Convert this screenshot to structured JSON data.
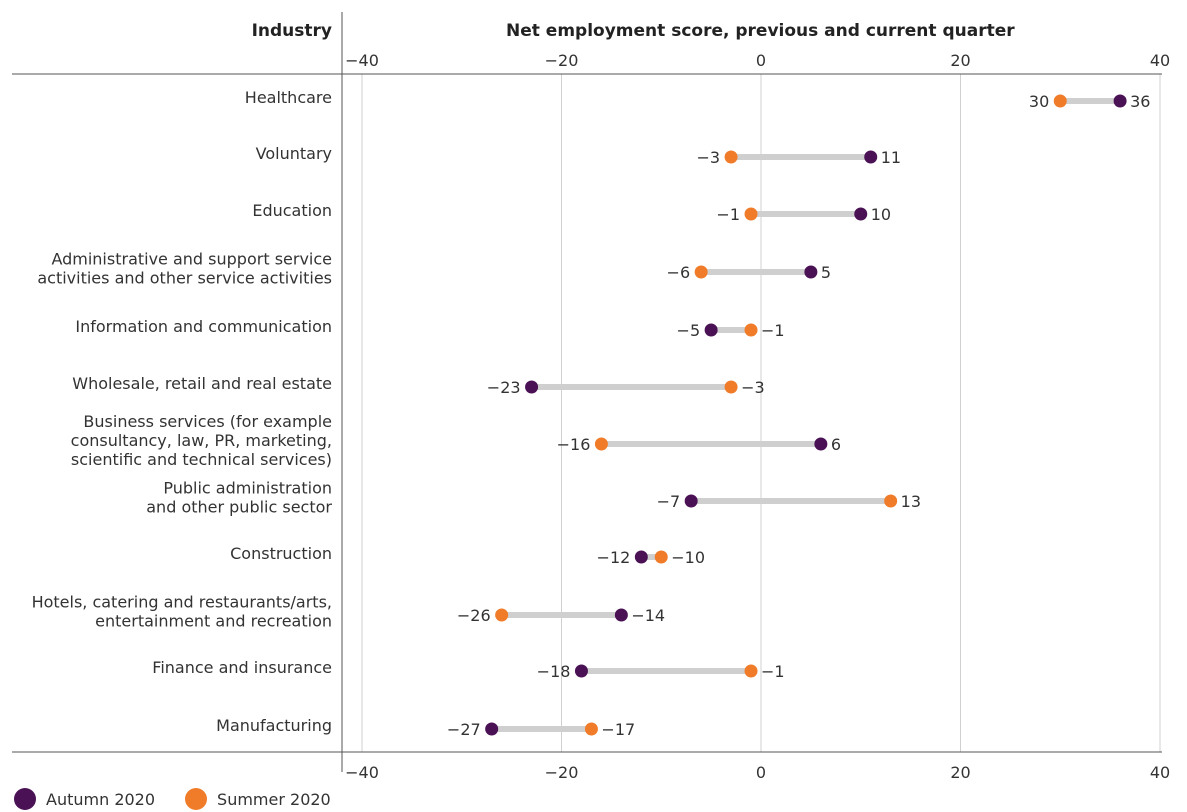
{
  "chart_data": {
    "type": "dumbbell",
    "title": "",
    "category_header": "Industry",
    "xlabel": "Net employment score, previous and current quarter",
    "xlim": [
      -40,
      40
    ],
    "xticks": [
      -40,
      -20,
      0,
      20,
      40
    ],
    "xtick_labels": [
      "−40",
      "−20",
      "0",
      "20",
      "40"
    ],
    "grid": true,
    "legend_position": "bottom-left",
    "series": [
      {
        "name": "Autumn 2020",
        "color": "#4a1155"
      },
      {
        "name": "Summer 2020",
        "color": "#f07c2a"
      }
    ],
    "categories": [
      [
        "Healthcare"
      ],
      [
        "Voluntary"
      ],
      [
        "Education"
      ],
      [
        "Administrative and support service",
        "activities and other service activities"
      ],
      [
        "Information and communication"
      ],
      [
        "Wholesale, retail and real estate"
      ],
      [
        "Business services (for example",
        "consultancy, law, PR, marketing,",
        "scientific and technical services)"
      ],
      [
        "Public administration",
        "and other public sector"
      ],
      [
        "Construction"
      ],
      [
        "Hotels, catering and restaurants/arts,",
        "entertainment and recreation"
      ],
      [
        "Finance and insurance"
      ],
      [
        "Manufacturing"
      ]
    ],
    "autumn_2020": [
      36,
      11,
      10,
      5,
      -5,
      -23,
      6,
      -7,
      -12,
      -14,
      -18,
      -27
    ],
    "summer_2020": [
      30,
      -3,
      -1,
      -6,
      -1,
      -3,
      -16,
      13,
      -10,
      -26,
      -1,
      -17
    ],
    "autumn_labels": [
      "36",
      "11",
      "10",
      "5",
      "−5",
      "−23",
      "6",
      "−7",
      "−12",
      "−14",
      "−18",
      "−27"
    ],
    "summer_labels": [
      "30",
      "−3",
      "−1",
      "−6",
      "−1",
      "−3",
      "−16",
      "13",
      "−10",
      "−26",
      "−1",
      "−17"
    ]
  },
  "legend": {
    "autumn_label": "Autumn 2020",
    "summer_label": "Summer 2020"
  }
}
